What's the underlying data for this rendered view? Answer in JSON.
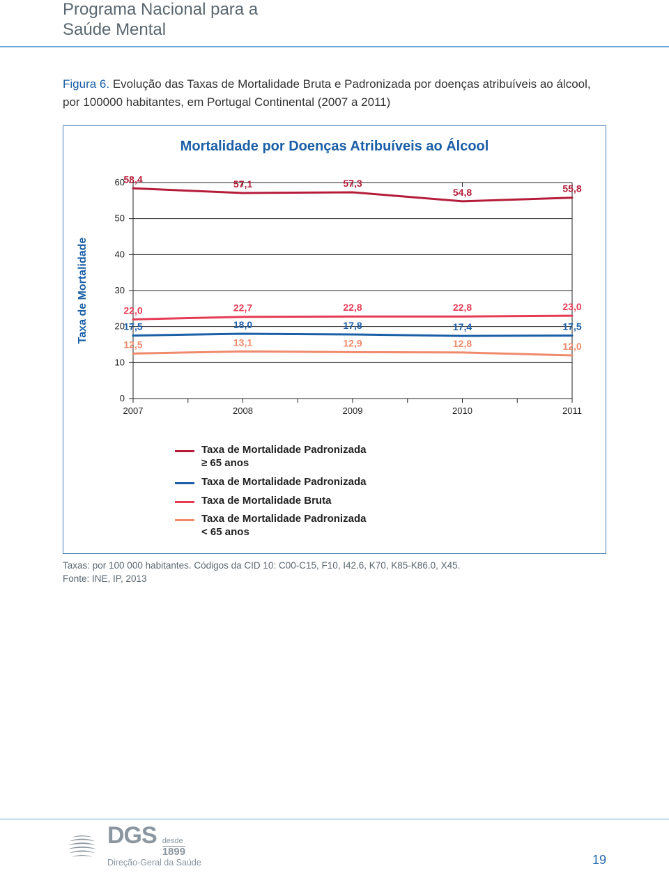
{
  "header": {
    "title_line1": "Programa Nacional para a",
    "title_line2": "Saúde Mental"
  },
  "figure": {
    "label": "Figura 6.",
    "caption": "Evolução das Taxas de Mortalidade Bruta e Padronizada por doenças atribuíveis ao álcool, por 100000 habitantes, em Portugal Continental (2007 a 2011)"
  },
  "chart": {
    "title": "Mortalidade por Doenças Atribuíveis ao Álcool",
    "y_axis_label": "Taxa de Mortalidade",
    "ylim": [
      0,
      60
    ],
    "ytick_step": 10,
    "yticks": [
      "0",
      "10",
      "20",
      "30",
      "40",
      "50",
      "60"
    ],
    "categories": [
      "2007",
      "2008",
      "2009",
      "2010",
      "2011"
    ],
    "grid_color": "#222",
    "plot_background": "#ffffff",
    "series": [
      {
        "key": "padronizada_ge65",
        "label": "Taxa de Mortalidade Padronizada ≥ 65 anos",
        "color": "#b51c3a",
        "stroke_width": 3,
        "values": [
          58.4,
          57.1,
          57.3,
          54.8,
          55.8
        ],
        "display_values": [
          "58,4",
          "57,1",
          "57,3",
          "54,8",
          "55,8"
        ],
        "label_color": "#b51c3a"
      },
      {
        "key": "bruta",
        "label": "Taxa de Mortalidade Bruta",
        "color": "#e53c55",
        "stroke_width": 3,
        "values": [
          22.0,
          22.7,
          22.8,
          22.8,
          23.0
        ],
        "display_values": [
          "22,0",
          "22,7",
          "22,8",
          "22,8",
          "23,0"
        ],
        "label_color": "#e53c55"
      },
      {
        "key": "padronizada",
        "label": "Taxa de Mortalidade Padronizada",
        "color": "#1b5fa6",
        "stroke_width": 3,
        "values": [
          17.5,
          18.0,
          17.8,
          17.4,
          17.5
        ],
        "display_values": [
          "17,5",
          "18,0",
          "17,8",
          "17,4",
          "17,5"
        ],
        "label_color": "#1b5fa6"
      },
      {
        "key": "padronizada_lt65",
        "label": "Taxa de Mortalidade Padronizada < 65 anos",
        "color": "#f08a6c",
        "stroke_width": 3,
        "values": [
          12.5,
          13.1,
          12.9,
          12.8,
          12.0
        ],
        "display_values": [
          "12,5",
          "13,1",
          "12,9",
          "12,8",
          "12,0"
        ],
        "label_color": "#f08a6c"
      }
    ],
    "legend_order": [
      "padronizada_ge65",
      "padronizada",
      "bruta",
      "padronizada_lt65"
    ]
  },
  "footnotes": {
    "line1": "Taxas: por 100 000 habitantes. Códigos da CID 10: C00-C15, F10, I42.6, K70, K85-K86.0, X45.",
    "line2": "Fonte: INE, IP, 2013"
  },
  "footer": {
    "org_abbrev": "DGS",
    "since_label": "desde",
    "since_year": "1899",
    "org_full": "Direção-Geral da Saúde",
    "page_number": "19"
  }
}
